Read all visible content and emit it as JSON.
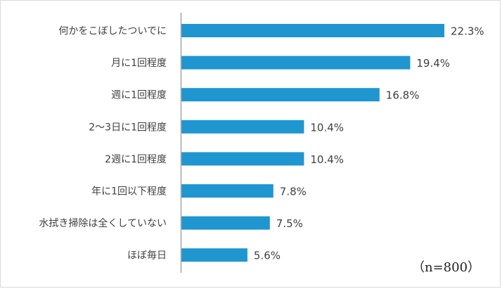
{
  "chart_data": {
    "type": "bar",
    "orientation": "horizontal",
    "categories": [
      "何かをこぼしたついでに",
      "月に1回程度",
      "週に1回程度",
      "2〜3日に1回程度",
      "2週に1回程度",
      "年に1回以下程度",
      "水拭き掃除は全くしていない",
      "ほぼ毎日"
    ],
    "values": [
      22.3,
      19.4,
      16.8,
      10.4,
      10.4,
      7.8,
      7.5,
      5.6
    ],
    "value_labels": [
      "22.3%",
      "19.4%",
      "16.8%",
      "10.4%",
      "10.4%",
      "7.8%",
      "7.5%",
      "5.6%"
    ],
    "unit": "%",
    "xlim": [
      0,
      25
    ],
    "bar_color": "#1f96d0",
    "axis_color": "#a6a6a6",
    "grid": false,
    "legend": "none",
    "note": "（n=800）"
  }
}
